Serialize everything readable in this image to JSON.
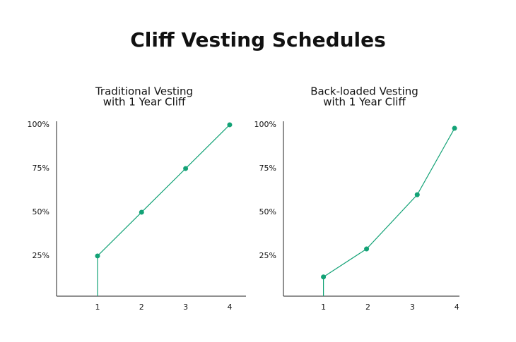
{
  "title": "Cliff Vesting Schedules",
  "chart_data": [
    {
      "type": "line",
      "title": [
        "Traditional Vesting",
        "with 1 Year Cliff"
      ],
      "x": [
        1,
        2,
        3,
        4
      ],
      "values": [
        25,
        50,
        75,
        100
      ],
      "color": "#13a276",
      "xlim": [
        0.07,
        4.37
      ],
      "xticks": [
        1,
        2,
        3,
        4
      ],
      "ylim": [
        2,
        102
      ],
      "yticks": [
        {
          "value": 25,
          "label": "25%"
        },
        {
          "value": 50,
          "label": "50%"
        },
        {
          "value": 75,
          "label": "75%"
        },
        {
          "value": 100,
          "label": "100%"
        }
      ]
    },
    {
      "type": "line",
      "title": [
        "Back-loaded Vesting",
        "with 1 Year Cliff"
      ],
      "x": [
        1,
        1.97,
        3.11,
        3.95
      ],
      "values": [
        13,
        29,
        60,
        98
      ],
      "color": "#13a276",
      "xlim": [
        0.1,
        4.06
      ],
      "xticks": [
        1,
        2,
        3,
        4
      ],
      "ylim": [
        2,
        102
      ],
      "yticks": [
        {
          "value": 25,
          "label": "25%"
        },
        {
          "value": 50,
          "label": "50%"
        },
        {
          "value": 75,
          "label": "75%"
        },
        {
          "value": 100,
          "label": "100%"
        }
      ]
    }
  ]
}
